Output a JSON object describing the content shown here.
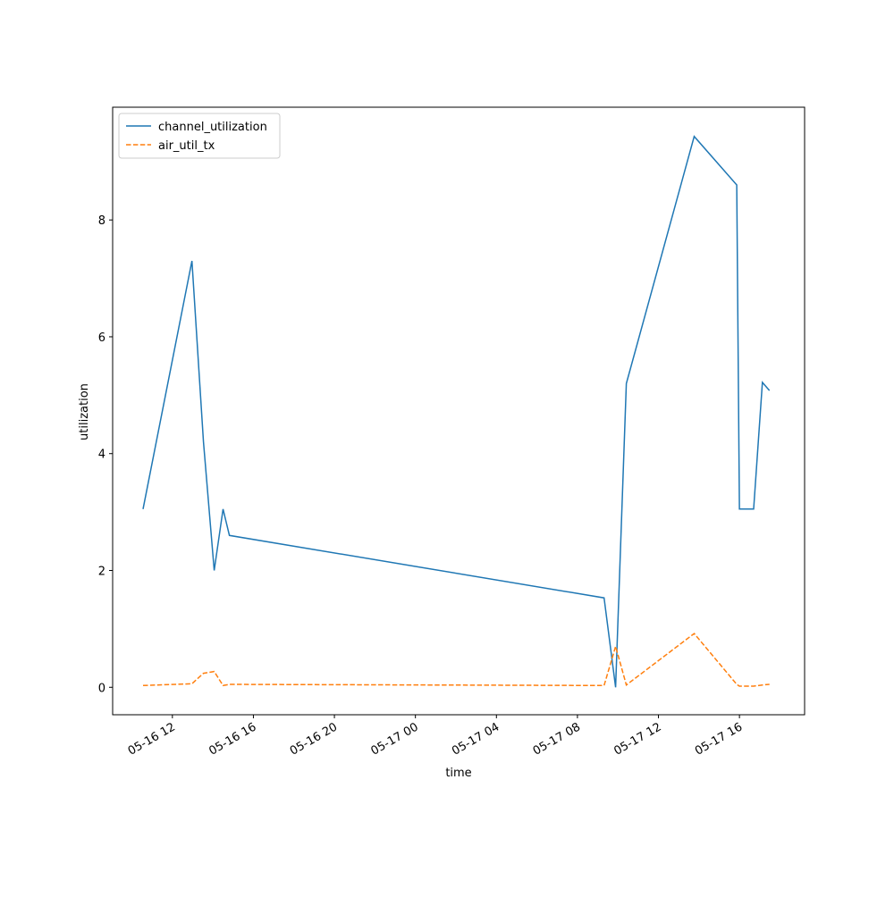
{
  "chart_data": {
    "type": "line",
    "x_label": "time",
    "y_label": "utilization",
    "x": [
      "05-16 10:33",
      "05-16 12:58",
      "05-16 13:32",
      "05-16 14:04",
      "05-16 14:30",
      "05-16 14:49",
      "05-17 09:19",
      "05-17 09:53",
      "05-17 10:25",
      "05-17 13:46",
      "05-17 15:52",
      "05-17 16:00",
      "05-17 16:42",
      "05-17 17:08",
      "05-17 17:29"
    ],
    "series": [
      {
        "name": "channel_utilization",
        "color": "#1f77b4",
        "dash": false,
        "values": [
          3.05,
          7.3,
          4.2,
          2.0,
          3.05,
          2.6,
          1.53,
          0.0,
          5.2,
          9.43,
          8.6,
          3.05,
          3.05,
          5.22,
          5.08
        ]
      },
      {
        "name": "air_util_tx",
        "color": "#ff7f0e",
        "dash": true,
        "values": [
          0.03,
          0.06,
          0.24,
          0.27,
          0.03,
          0.05,
          0.03,
          0.7,
          0.04,
          0.92,
          0.05,
          0.02,
          0.02,
          0.04,
          0.05
        ]
      }
    ],
    "xlim": [
      "05-16 09:03",
      "05-17 19:13"
    ],
    "xticks": [
      "05-16 12",
      "05-16 16",
      "05-16 20",
      "05-17 00",
      "05-17 04",
      "05-17 08",
      "05-17 12",
      "05-17 16"
    ],
    "ylim": [
      -0.47,
      9.93
    ],
    "yticks": [
      0,
      2,
      4,
      6,
      8
    ],
    "legend": "upper left"
  }
}
